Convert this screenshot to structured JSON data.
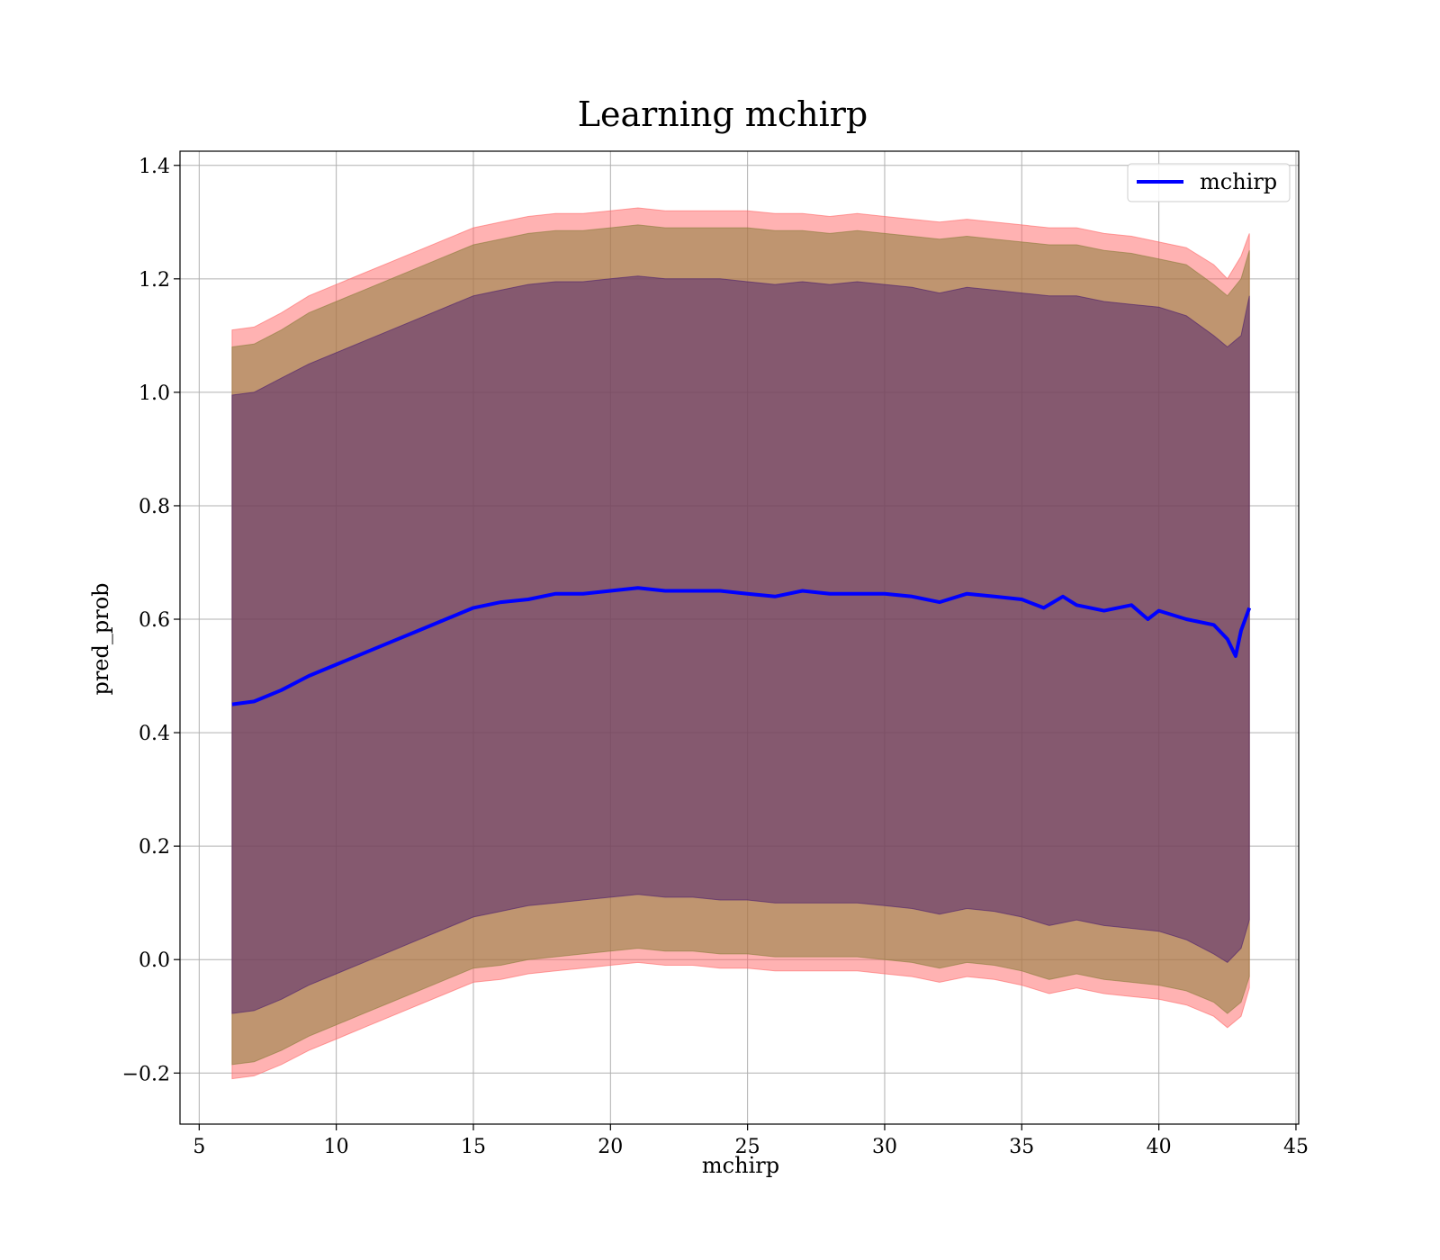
{
  "chart_data": {
    "type": "line",
    "title": "Learning mchirp",
    "xlabel": "mchirp",
    "ylabel": "pred_prob",
    "xlim": [
      4.3,
      45.1
    ],
    "ylim": [
      -0.29,
      1.425
    ],
    "xticks": [
      5,
      10,
      15,
      20,
      25,
      30,
      35,
      40,
      45
    ],
    "xtick_labels": [
      "5",
      "10",
      "15",
      "20",
      "25",
      "30",
      "35",
      "40",
      "45"
    ],
    "yticks": [
      -0.2,
      0.0,
      0.2,
      0.4,
      0.6,
      0.8,
      1.0,
      1.2,
      1.4
    ],
    "ytick_labels": [
      "−0.2",
      "0.0",
      "0.2",
      "0.4",
      "0.6",
      "0.8",
      "1.0",
      "1.2",
      "1.4"
    ],
    "grid": true,
    "legend": {
      "position": "top-right",
      "entries": [
        "mchirp"
      ]
    },
    "colors": {
      "line": "#0000ff",
      "band_outer": "#ff6666",
      "band_middle": "#8b7d3a",
      "band_inner": "#4b1e6e"
    },
    "series": [
      {
        "name": "mchirp",
        "style": "line",
        "x": [
          6.2,
          7.0,
          8.0,
          9.0,
          10.0,
          11.0,
          12.0,
          13.0,
          14.0,
          15.0,
          16.0,
          17.0,
          18.0,
          19.0,
          20.0,
          21.0,
          22.0,
          23.0,
          24.0,
          25.0,
          26.0,
          27.0,
          28.0,
          29.0,
          30.0,
          31.0,
          32.0,
          33.0,
          34.0,
          35.0,
          35.8,
          36.5,
          37.0,
          38.0,
          39.0,
          39.6,
          40.0,
          41.0,
          42.0,
          42.5,
          42.8,
          43.0,
          43.3
        ],
        "y": [
          0.45,
          0.455,
          0.475,
          0.5,
          0.52,
          0.54,
          0.56,
          0.58,
          0.6,
          0.62,
          0.63,
          0.635,
          0.645,
          0.645,
          0.65,
          0.655,
          0.65,
          0.65,
          0.65,
          0.645,
          0.64,
          0.65,
          0.645,
          0.645,
          0.645,
          0.64,
          0.63,
          0.645,
          0.64,
          0.635,
          0.62,
          0.64,
          0.625,
          0.615,
          0.625,
          0.6,
          0.615,
          0.6,
          0.59,
          0.565,
          0.535,
          0.58,
          0.62
        ]
      },
      {
        "name": "",
        "style": "band",
        "band": "outer",
        "x": [
          6.2,
          7.0,
          8.0,
          9.0,
          10.0,
          11.0,
          12.0,
          13.0,
          14.0,
          15.0,
          16.0,
          17.0,
          18.0,
          19.0,
          20.0,
          21.0,
          22.0,
          23.0,
          24.0,
          25.0,
          26.0,
          27.0,
          28.0,
          29.0,
          30.0,
          31.0,
          32.0,
          33.0,
          34.0,
          35.0,
          36.0,
          37.0,
          38.0,
          39.0,
          40.0,
          41.0,
          42.0,
          42.5,
          43.0,
          43.3
        ],
        "upper": [
          1.11,
          1.115,
          1.14,
          1.17,
          1.19,
          1.21,
          1.23,
          1.25,
          1.27,
          1.29,
          1.3,
          1.31,
          1.315,
          1.315,
          1.32,
          1.325,
          1.32,
          1.32,
          1.32,
          1.32,
          1.315,
          1.315,
          1.31,
          1.315,
          1.31,
          1.305,
          1.3,
          1.305,
          1.3,
          1.295,
          1.29,
          1.29,
          1.28,
          1.275,
          1.265,
          1.255,
          1.225,
          1.2,
          1.24,
          1.28
        ],
        "lower": [
          -0.21,
          -0.205,
          -0.185,
          -0.16,
          -0.14,
          -0.12,
          -0.1,
          -0.08,
          -0.06,
          -0.04,
          -0.035,
          -0.025,
          -0.02,
          -0.015,
          -0.01,
          -0.005,
          -0.01,
          -0.01,
          -0.015,
          -0.015,
          -0.02,
          -0.02,
          -0.02,
          -0.02,
          -0.025,
          -0.03,
          -0.04,
          -0.03,
          -0.035,
          -0.045,
          -0.06,
          -0.05,
          -0.06,
          -0.065,
          -0.07,
          -0.08,
          -0.1,
          -0.12,
          -0.1,
          -0.05
        ]
      },
      {
        "name": "",
        "style": "band",
        "band": "middle",
        "x": [
          6.2,
          7.0,
          8.0,
          9.0,
          10.0,
          11.0,
          12.0,
          13.0,
          14.0,
          15.0,
          16.0,
          17.0,
          18.0,
          19.0,
          20.0,
          21.0,
          22.0,
          23.0,
          24.0,
          25.0,
          26.0,
          27.0,
          28.0,
          29.0,
          30.0,
          31.0,
          32.0,
          33.0,
          34.0,
          35.0,
          36.0,
          37.0,
          38.0,
          39.0,
          40.0,
          41.0,
          42.0,
          42.5,
          43.0,
          43.3
        ],
        "upper": [
          1.08,
          1.085,
          1.11,
          1.14,
          1.16,
          1.18,
          1.2,
          1.22,
          1.24,
          1.26,
          1.27,
          1.28,
          1.285,
          1.285,
          1.29,
          1.295,
          1.29,
          1.29,
          1.29,
          1.29,
          1.285,
          1.285,
          1.28,
          1.285,
          1.28,
          1.275,
          1.27,
          1.275,
          1.27,
          1.265,
          1.26,
          1.26,
          1.25,
          1.245,
          1.235,
          1.225,
          1.19,
          1.17,
          1.2,
          1.25
        ],
        "lower": [
          -0.185,
          -0.18,
          -0.16,
          -0.135,
          -0.115,
          -0.095,
          -0.075,
          -0.055,
          -0.035,
          -0.015,
          -0.01,
          0.0,
          0.005,
          0.01,
          0.015,
          0.02,
          0.015,
          0.015,
          0.01,
          0.01,
          0.005,
          0.005,
          0.005,
          0.005,
          0.0,
          -0.005,
          -0.015,
          -0.005,
          -0.01,
          -0.02,
          -0.035,
          -0.025,
          -0.035,
          -0.04,
          -0.045,
          -0.055,
          -0.075,
          -0.095,
          -0.075,
          -0.03
        ]
      },
      {
        "name": "",
        "style": "band",
        "band": "inner",
        "x": [
          6.2,
          7.0,
          8.0,
          9.0,
          10.0,
          11.0,
          12.0,
          13.0,
          14.0,
          15.0,
          16.0,
          17.0,
          18.0,
          19.0,
          20.0,
          21.0,
          22.0,
          23.0,
          24.0,
          25.0,
          26.0,
          27.0,
          28.0,
          29.0,
          30.0,
          31.0,
          32.0,
          33.0,
          34.0,
          35.0,
          36.0,
          37.0,
          38.0,
          39.0,
          40.0,
          41.0,
          42.0,
          42.5,
          43.0,
          43.3
        ],
        "upper": [
          0.995,
          1.0,
          1.025,
          1.05,
          1.07,
          1.09,
          1.11,
          1.13,
          1.15,
          1.17,
          1.18,
          1.19,
          1.195,
          1.195,
          1.2,
          1.205,
          1.2,
          1.2,
          1.2,
          1.195,
          1.19,
          1.195,
          1.19,
          1.195,
          1.19,
          1.185,
          1.175,
          1.185,
          1.18,
          1.175,
          1.17,
          1.17,
          1.16,
          1.155,
          1.15,
          1.135,
          1.1,
          1.08,
          1.1,
          1.17
        ],
        "lower": [
          -0.095,
          -0.09,
          -0.07,
          -0.045,
          -0.025,
          -0.005,
          0.015,
          0.035,
          0.055,
          0.075,
          0.085,
          0.095,
          0.1,
          0.105,
          0.11,
          0.115,
          0.11,
          0.11,
          0.105,
          0.105,
          0.1,
          0.1,
          0.1,
          0.1,
          0.095,
          0.09,
          0.08,
          0.09,
          0.085,
          0.075,
          0.06,
          0.07,
          0.06,
          0.055,
          0.05,
          0.035,
          0.01,
          -0.005,
          0.02,
          0.07
        ]
      }
    ]
  }
}
